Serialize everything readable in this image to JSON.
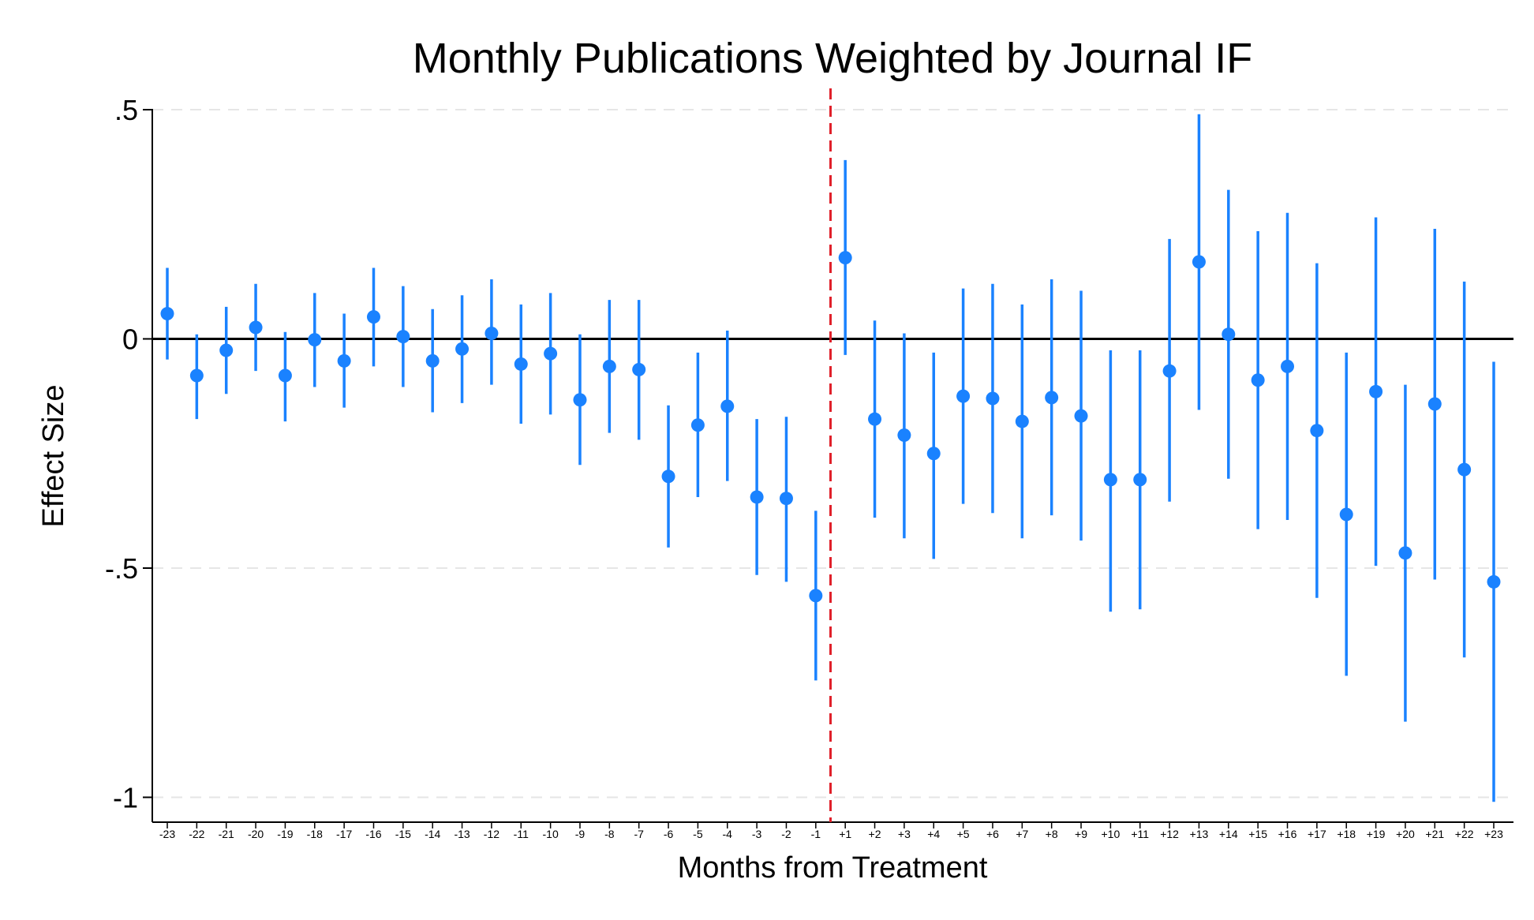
{
  "chart_data": {
    "type": "scatter",
    "title": "Monthly Publications Weighted by Journal IF",
    "xlabel": "Months from Treatment",
    "ylabel": "Effect Size",
    "ylim": [
      -1.05,
      0.5
    ],
    "yticks": [
      0.5,
      0,
      -0.5,
      -1
    ],
    "ytick_labels": [
      ".5",
      "0",
      "-.5",
      "-1"
    ],
    "grid": "horizontal dashed",
    "treatment_line": "between -1 and +1",
    "colors": {
      "point": "#1a82ff",
      "ci": "#1a82ff",
      "treatment_line": "#e0202a",
      "zero_line": "#000000",
      "grid": "#e6e6e6"
    },
    "points": [
      {
        "x": "-23",
        "y": 0.055,
        "lo": -0.045,
        "hi": 0.155
      },
      {
        "x": "-22",
        "y": -0.08,
        "lo": -0.175,
        "hi": 0.01
      },
      {
        "x": "-21",
        "y": -0.025,
        "lo": -0.12,
        "hi": 0.07
      },
      {
        "x": "-20",
        "y": 0.025,
        "lo": -0.07,
        "hi": 0.12
      },
      {
        "x": "-19",
        "y": -0.08,
        "lo": -0.18,
        "hi": 0.015
      },
      {
        "x": "-18",
        "y": -0.002,
        "lo": -0.105,
        "hi": 0.1
      },
      {
        "x": "-17",
        "y": -0.048,
        "lo": -0.15,
        "hi": 0.055
      },
      {
        "x": "-16",
        "y": 0.048,
        "lo": -0.06,
        "hi": 0.155
      },
      {
        "x": "-15",
        "y": 0.005,
        "lo": -0.105,
        "hi": 0.115
      },
      {
        "x": "-14",
        "y": -0.048,
        "lo": -0.16,
        "hi": 0.065
      },
      {
        "x": "-13",
        "y": -0.022,
        "lo": -0.14,
        "hi": 0.095
      },
      {
        "x": "-12",
        "y": 0.012,
        "lo": -0.1,
        "hi": 0.13
      },
      {
        "x": "-11",
        "y": -0.055,
        "lo": -0.185,
        "hi": 0.075
      },
      {
        "x": "-10",
        "y": -0.032,
        "lo": -0.165,
        "hi": 0.1
      },
      {
        "x": "-9",
        "y": -0.133,
        "lo": -0.275,
        "hi": 0.01
      },
      {
        "x": "-8",
        "y": -0.06,
        "lo": -0.205,
        "hi": 0.085
      },
      {
        "x": "-7",
        "y": -0.067,
        "lo": -0.22,
        "hi": 0.085
      },
      {
        "x": "-6",
        "y": -0.3,
        "lo": -0.455,
        "hi": -0.145
      },
      {
        "x": "-5",
        "y": -0.188,
        "lo": -0.345,
        "hi": -0.03
      },
      {
        "x": "-4",
        "y": -0.147,
        "lo": -0.31,
        "hi": 0.018
      },
      {
        "x": "-3",
        "y": -0.345,
        "lo": -0.515,
        "hi": -0.175
      },
      {
        "x": "-2",
        "y": -0.348,
        "lo": -0.53,
        "hi": -0.17
      },
      {
        "x": "-1",
        "y": -0.56,
        "lo": -0.745,
        "hi": -0.375
      },
      {
        "x": "+1",
        "y": 0.177,
        "lo": -0.035,
        "hi": 0.39
      },
      {
        "x": "+2",
        "y": -0.175,
        "lo": -0.39,
        "hi": 0.04
      },
      {
        "x": "+3",
        "y": -0.21,
        "lo": -0.435,
        "hi": 0.012
      },
      {
        "x": "+4",
        "y": -0.25,
        "lo": -0.48,
        "hi": -0.03
      },
      {
        "x": "+5",
        "y": -0.125,
        "lo": -0.36,
        "hi": 0.11
      },
      {
        "x": "+6",
        "y": -0.13,
        "lo": -0.38,
        "hi": 0.12
      },
      {
        "x": "+7",
        "y": -0.18,
        "lo": -0.435,
        "hi": 0.075
      },
      {
        "x": "+8",
        "y": -0.128,
        "lo": -0.385,
        "hi": 0.13
      },
      {
        "x": "+9",
        "y": -0.168,
        "lo": -0.44,
        "hi": 0.105
      },
      {
        "x": "+10",
        "y": -0.307,
        "lo": -0.595,
        "hi": -0.025
      },
      {
        "x": "+11",
        "y": -0.307,
        "lo": -0.59,
        "hi": -0.025
      },
      {
        "x": "+12",
        "y": -0.07,
        "lo": -0.355,
        "hi": 0.218
      },
      {
        "x": "+13",
        "y": 0.168,
        "lo": -0.155,
        "hi": 0.49
      },
      {
        "x": "+14",
        "y": 0.01,
        "lo": -0.305,
        "hi": 0.325
      },
      {
        "x": "+15",
        "y": -0.09,
        "lo": -0.415,
        "hi": 0.235
      },
      {
        "x": "+16",
        "y": -0.06,
        "lo": -0.395,
        "hi": 0.275
      },
      {
        "x": "+17",
        "y": -0.2,
        "lo": -0.565,
        "hi": 0.165
      },
      {
        "x": "+18",
        "y": -0.383,
        "lo": -0.735,
        "hi": -0.03
      },
      {
        "x": "+19",
        "y": -0.115,
        "lo": -0.495,
        "hi": 0.265
      },
      {
        "x": "+20",
        "y": -0.467,
        "lo": -0.835,
        "hi": -0.1
      },
      {
        "x": "+21",
        "y": -0.142,
        "lo": -0.525,
        "hi": 0.24
      },
      {
        "x": "+22",
        "y": -0.285,
        "lo": -0.695,
        "hi": 0.125
      },
      {
        "x": "+23",
        "y": -0.53,
        "lo": -1.01,
        "hi": -0.05
      }
    ]
  }
}
